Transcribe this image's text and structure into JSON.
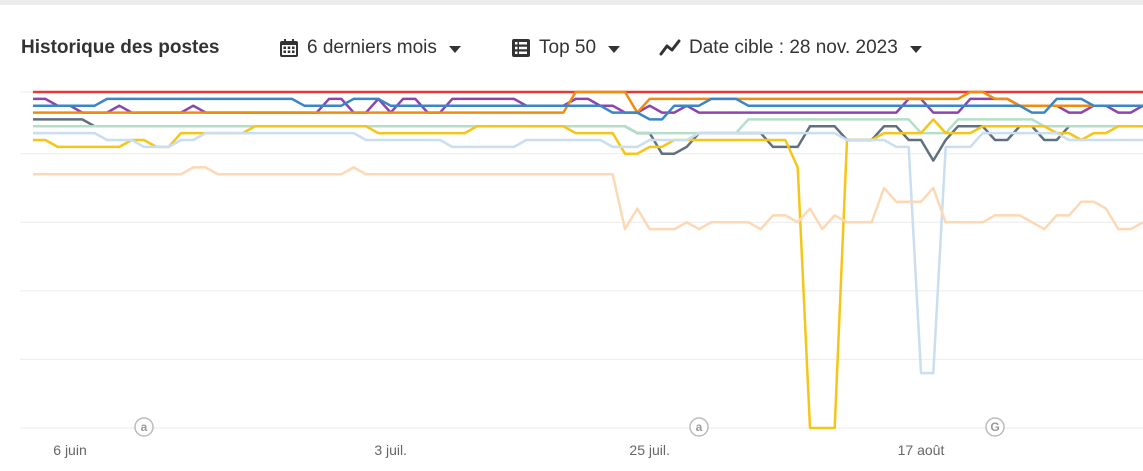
{
  "header": {
    "title": "Historique des postes",
    "period_label": "6 derniers mois",
    "top_label": "Top 50",
    "target_label": "Date cible : 28 nov. 2023"
  },
  "icons": {
    "period": "calendar-icon",
    "top": "list-icon",
    "target": "trend-line-icon"
  },
  "chart_data": {
    "type": "line",
    "title": "Historique des postes",
    "y_inverted": true,
    "ylim": [
      1,
      50
    ],
    "grid": true,
    "x_ticks": [
      {
        "label": "6 juin",
        "index": 3
      },
      {
        "label": "3 juil.",
        "index": 29
      },
      {
        "label": "25 juil.",
        "index": 50
      },
      {
        "label": "17 août",
        "index": 72
      }
    ],
    "annotations": [
      {
        "label": "a",
        "index": 9
      },
      {
        "label": "a",
        "index": 54
      },
      {
        "label": "G",
        "index": 78
      }
    ],
    "n_points": 91,
    "series": [
      {
        "name": "red",
        "color": "#e53935",
        "values": [
          1,
          1,
          1,
          1,
          1,
          1,
          1,
          1,
          1,
          1,
          1,
          1,
          1,
          1,
          1,
          1,
          1,
          1,
          1,
          1,
          1,
          1,
          1,
          1,
          1,
          1,
          1,
          1,
          1,
          1,
          1,
          1,
          1,
          1,
          1,
          1,
          1,
          1,
          1,
          1,
          1,
          1,
          1,
          1,
          1,
          1,
          1,
          1,
          1,
          1,
          1,
          1,
          1,
          1,
          1,
          1,
          1,
          1,
          1,
          1,
          1,
          1,
          1,
          1,
          1,
          1,
          1,
          1,
          1,
          1,
          1,
          1,
          1,
          1,
          1,
          1,
          1,
          1,
          1,
          1,
          1,
          1,
          1,
          1,
          1,
          1,
          1,
          1,
          1,
          1,
          1
        ]
      },
      {
        "name": "purple",
        "color": "#8e44ad",
        "values": [
          2,
          2,
          3,
          3,
          4,
          4,
          4,
          3,
          4,
          4,
          4,
          4,
          4,
          3,
          4,
          4,
          4,
          4,
          4,
          4,
          4,
          4,
          4,
          4,
          2,
          2,
          4,
          4,
          2,
          4,
          2,
          2,
          4,
          4,
          2,
          2,
          2,
          2,
          2,
          2,
          3,
          3,
          3,
          3,
          2,
          2,
          3,
          3,
          4,
          4,
          3,
          4,
          4,
          3,
          4,
          4,
          4,
          4,
          4,
          4,
          4,
          4,
          4,
          4,
          4,
          4,
          4,
          4,
          4,
          4,
          4,
          2,
          2,
          4,
          4,
          4,
          2,
          2,
          2,
          2,
          3,
          3,
          3,
          3,
          4,
          4,
          3,
          3,
          4,
          4,
          3
        ]
      },
      {
        "name": "orange",
        "color": "#f28c0f",
        "values": [
          4,
          4,
          4,
          4,
          4,
          4,
          4,
          4,
          4,
          4,
          4,
          4,
          4,
          4,
          4,
          4,
          4,
          4,
          4,
          4,
          4,
          4,
          4,
          4,
          4,
          4,
          4,
          4,
          4,
          4,
          4,
          4,
          4,
          4,
          4,
          4,
          4,
          4,
          4,
          4,
          4,
          4,
          4,
          4,
          1,
          1,
          1,
          1,
          1,
          4,
          2,
          2,
          2,
          2,
          2,
          2,
          2,
          2,
          2,
          2,
          2,
          2,
          2,
          2,
          2,
          2,
          2,
          2,
          2,
          2,
          2,
          2,
          2,
          2,
          2,
          2,
          1,
          1,
          2,
          2,
          3,
          3,
          3,
          3,
          3,
          3,
          3,
          3,
          3,
          3,
          3
        ]
      },
      {
        "name": "blue",
        "color": "#3a86c8",
        "values": [
          3,
          3,
          3,
          3,
          3,
          3,
          2,
          2,
          2,
          2,
          2,
          2,
          2,
          2,
          2,
          2,
          2,
          2,
          2,
          2,
          2,
          2,
          3,
          3,
          3,
          3,
          2,
          2,
          2,
          3,
          3,
          3,
          3,
          3,
          3,
          3,
          3,
          3,
          3,
          3,
          3,
          3,
          3,
          3,
          3,
          3,
          3,
          4,
          4,
          4,
          5,
          5,
          3,
          3,
          3,
          2,
          2,
          2,
          3,
          3,
          3,
          3,
          3,
          3,
          3,
          3,
          3,
          3,
          3,
          3,
          3,
          3,
          3,
          3,
          3,
          3,
          3,
          3,
          3,
          3,
          3,
          4,
          4,
          2,
          2,
          2,
          3,
          3,
          3,
          3,
          3
        ]
      },
      {
        "name": "slate",
        "color": "#607080",
        "values": [
          5,
          5,
          5,
          5,
          5,
          6,
          6,
          6,
          6,
          6,
          6,
          6,
          6,
          6,
          6,
          6,
          6,
          6,
          6,
          6,
          6,
          6,
          6,
          6,
          6,
          6,
          6,
          6,
          6,
          6,
          6,
          6,
          6,
          6,
          6,
          6,
          6,
          6,
          6,
          6,
          6,
          6,
          6,
          6,
          6,
          6,
          6,
          6,
          6,
          7,
          7,
          10,
          10,
          9,
          7,
          7,
          7,
          7,
          7,
          7,
          9,
          9,
          9,
          6,
          6,
          6,
          8,
          8,
          8,
          6,
          6,
          8,
          8,
          11,
          8,
          6,
          6,
          6,
          8,
          8,
          6,
          6,
          8,
          8,
          6,
          6,
          6,
          6,
          6,
          6,
          6
        ]
      },
      {
        "name": "mint",
        "color": "#b4dec8",
        "values": [
          6,
          6,
          6,
          6,
          6,
          6,
          6,
          6,
          6,
          6,
          6,
          6,
          6,
          6,
          6,
          6,
          6,
          6,
          6,
          6,
          6,
          6,
          6,
          6,
          6,
          6,
          6,
          6,
          6,
          6,
          6,
          6,
          6,
          6,
          6,
          6,
          6,
          6,
          6,
          6,
          6,
          6,
          6,
          6,
          6,
          6,
          6,
          6,
          6,
          7,
          7,
          7,
          7,
          7,
          7,
          7,
          7,
          7,
          5,
          5,
          5,
          5,
          5,
          5,
          5,
          5,
          5,
          5,
          5,
          5,
          5,
          5,
          7,
          7,
          7,
          5,
          5,
          5,
          5,
          5,
          5,
          5,
          6,
          6,
          6,
          6,
          6,
          6,
          6,
          6,
          6
        ]
      },
      {
        "name": "yellow",
        "color": "#f5c518",
        "values": [
          8,
          8,
          9,
          9,
          9,
          9,
          9,
          9,
          8,
          8,
          9,
          9,
          7,
          7,
          7,
          7,
          7,
          7,
          6,
          6,
          6,
          6,
          6,
          6,
          6,
          6,
          6,
          6,
          7,
          7,
          7,
          7,
          7,
          7,
          7,
          7,
          6,
          6,
          6,
          6,
          6,
          6,
          6,
          6,
          7,
          7,
          7,
          7,
          10,
          10,
          9,
          9,
          8,
          8,
          8,
          8,
          8,
          8,
          8,
          8,
          8,
          8,
          12,
          50,
          50,
          50,
          8,
          8,
          8,
          7,
          7,
          7,
          7,
          5,
          7,
          7,
          7,
          6,
          6,
          6,
          6,
          6,
          6,
          7,
          7,
          8,
          7,
          7,
          6,
          6,
          6
        ]
      },
      {
        "name": "lightblue",
        "color": "#c9def0",
        "values": [
          7,
          7,
          7,
          7,
          7,
          7,
          8,
          8,
          8,
          9,
          9,
          9,
          8,
          8,
          7,
          7,
          7,
          7,
          7,
          7,
          7,
          7,
          7,
          7,
          7,
          7,
          7,
          8,
          8,
          8,
          8,
          8,
          8,
          8,
          9,
          9,
          9,
          9,
          9,
          9,
          8,
          8,
          8,
          8,
          8,
          8,
          8,
          9,
          9,
          9,
          8,
          8,
          8,
          8,
          7,
          7,
          7,
          7,
          7,
          7,
          7,
          7,
          7,
          7,
          7,
          7,
          8,
          8,
          8,
          8,
          9,
          9,
          42,
          42,
          9,
          9,
          9,
          7,
          7,
          7,
          7,
          7,
          7,
          7,
          8,
          8,
          8,
          8,
          8,
          8,
          8
        ]
      },
      {
        "name": "peach",
        "color": "#fdd8b5",
        "values": [
          13,
          13,
          13,
          13,
          13,
          13,
          13,
          13,
          13,
          13,
          13,
          13,
          13,
          12,
          12,
          13,
          13,
          13,
          13,
          13,
          13,
          13,
          13,
          13,
          13,
          13,
          12,
          13,
          13,
          13,
          13,
          13,
          13,
          13,
          13,
          13,
          13,
          13,
          13,
          13,
          13,
          13,
          13,
          13,
          13,
          13,
          13,
          13,
          21,
          18,
          21,
          21,
          21,
          20,
          21,
          20,
          20,
          20,
          20,
          21,
          19,
          19,
          20,
          18,
          21,
          19,
          20,
          20,
          20,
          15,
          17,
          17,
          17,
          15,
          20,
          20,
          20,
          20,
          19,
          19,
          19,
          20,
          21,
          19,
          19,
          17,
          17,
          18,
          21,
          21,
          20
        ]
      }
    ]
  }
}
